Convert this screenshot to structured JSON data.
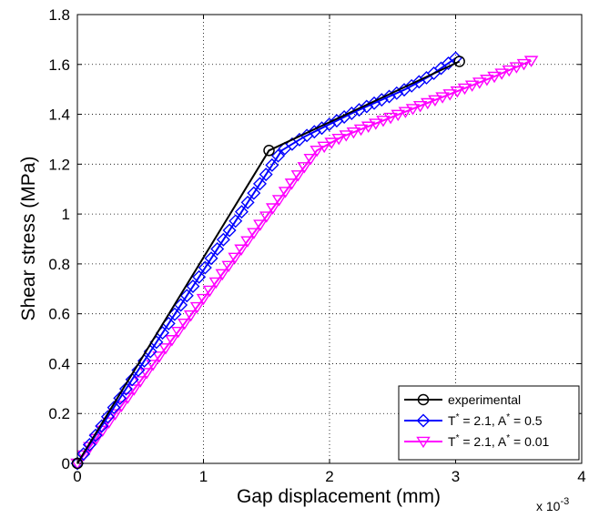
{
  "chart_data": {
    "type": "line",
    "title": "",
    "xlabel": "Gap displacement (mm)",
    "ylabel": "Shear stress (MPa)",
    "x_multiplier": "x 10",
    "x_multiplier_exp": "-3",
    "xlim": [
      0,
      4
    ],
    "ylim": [
      0,
      1.8
    ],
    "xticks": [
      "0",
      "1",
      "2",
      "3",
      "4"
    ],
    "yticks": [
      "0",
      "0.2",
      "0.4",
      "0.6",
      "0.8",
      "1",
      "1.2",
      "1.4",
      "1.6",
      "1.8"
    ],
    "grid": true,
    "legend_position": "bottom-right",
    "series": [
      {
        "legend_parts": [
          "experimental"
        ],
        "color": "#000000",
        "marker": "circle",
        "marker_points": [
          [
            0,
            0
          ],
          [
            1.52,
            1.255
          ],
          [
            3.03,
            1.612
          ]
        ],
        "line_points": [
          [
            0,
            0
          ],
          [
            1.52,
            1.255
          ],
          [
            3.03,
            1.612
          ]
        ]
      },
      {
        "legend_parts": [
          "T",
          "*",
          " = 2.1, A",
          "*",
          " = 0.5"
        ],
        "color": "#0000ff",
        "marker": "diamond",
        "marker_count": 58,
        "line_points": [
          [
            0,
            0
          ],
          [
            1.62,
            1.255
          ],
          [
            1.8,
            1.31
          ],
          [
            2.0,
            1.36
          ],
          [
            2.2,
            1.41
          ],
          [
            2.4,
            1.455
          ],
          [
            2.6,
            1.5
          ],
          [
            2.8,
            1.555
          ],
          [
            3.0,
            1.625
          ]
        ]
      },
      {
        "legend_parts": [
          "T",
          "*",
          " = 2.1, A",
          "*",
          " = 0.01"
        ],
        "color": "#ff00ff",
        "marker": "triangle-down",
        "marker_count": 68,
        "line_points": [
          [
            0,
            0
          ],
          [
            1.9,
            1.255
          ],
          [
            2.1,
            1.31
          ],
          [
            2.4,
            1.37
          ],
          [
            2.7,
            1.43
          ],
          [
            3.0,
            1.49
          ],
          [
            3.3,
            1.55
          ],
          [
            3.6,
            1.615
          ]
        ]
      }
    ]
  }
}
